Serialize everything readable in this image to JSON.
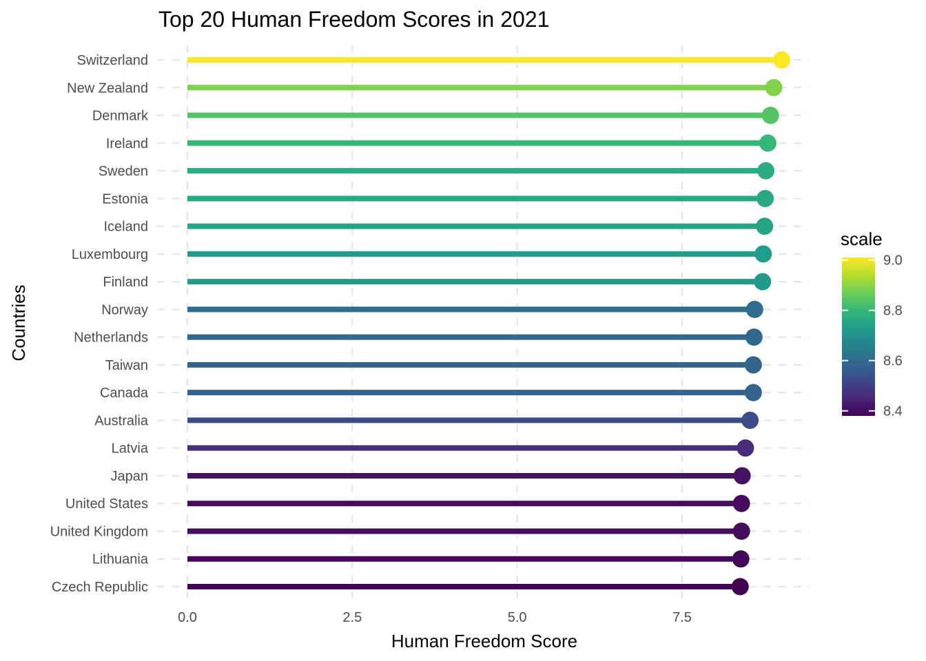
{
  "chart_data": {
    "type": "lollipop",
    "title": "Top 20 Human Freedom Scores in 2021",
    "xlabel": "Human Freedom Score",
    "ylabel": "Countries",
    "xlim": [
      0,
      9.0
    ],
    "x_ticks": [
      0,
      2.5,
      5.0,
      7.5
    ],
    "x_tick_labels": [
      "0.0",
      "2.5",
      "5.0",
      "7.5"
    ],
    "grid": true,
    "grid_style": "dashed",
    "categories": [
      "Switzerland",
      "New Zealand",
      "Denmark",
      "Ireland",
      "Sweden",
      "Estonia",
      "Iceland",
      "Luxembourg",
      "Finland",
      "Norway",
      "Netherlands",
      "Taiwan",
      "Canada",
      "Australia",
      "Latvia",
      "Japan",
      "United States",
      "United Kingdom",
      "Lithuania",
      "Czech Republic"
    ],
    "values": [
      9.01,
      8.89,
      8.84,
      8.8,
      8.77,
      8.76,
      8.75,
      8.73,
      8.72,
      8.6,
      8.59,
      8.58,
      8.58,
      8.53,
      8.46,
      8.41,
      8.4,
      8.4,
      8.39,
      8.38
    ],
    "legend": {
      "title": "scale",
      "position": "right",
      "min": 8.38,
      "max": 9.01,
      "ticks": [
        8.4,
        8.6,
        8.8,
        9.0
      ],
      "tick_labels": [
        "8.4",
        "8.6",
        "8.8",
        "9.0"
      ],
      "palette": "viridis"
    }
  },
  "colors": {
    "viridis": [
      "#440154",
      "#482878",
      "#3e4989",
      "#31688e",
      "#26828e",
      "#1f9e89",
      "#35b779",
      "#6ece58",
      "#b5de2b",
      "#fde725"
    ]
  }
}
